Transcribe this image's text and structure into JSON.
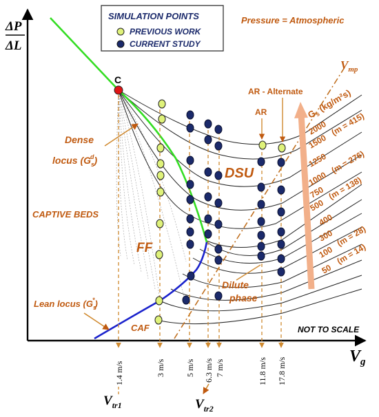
{
  "y_axis": {
    "numerator": "ΔP",
    "denominator": "ΔL"
  },
  "x_axis": {
    "label": "V",
    "sub": "g",
    "note": "NOT TO SCALE"
  },
  "pressure_note": "Pressure = Atmospheric",
  "legend": {
    "title": "SIMULATION POINTS",
    "previous": "PREVIOUS WORK",
    "current": "CURRENT STUDY",
    "previous_color": "#dff27a",
    "current_color": "#1b2a6b"
  },
  "regions": {
    "point_c": "C",
    "dense_locus_line1": "Dense",
    "dense_locus_line2": "locus (G",
    "dense_locus_sup": "d",
    "dense_locus_sub": "s",
    "dense_locus_close": ")",
    "captive_beds": "CAPTIVE BEDS",
    "ff": "FF",
    "dsu": "DSU",
    "caf": "CAF",
    "dilute": "Dilute",
    "phase": "phase",
    "lean_locus": "Lean locus (G",
    "lean_locus_sup": "*",
    "lean_locus_sub": "s",
    "lean_locus_close": ")",
    "ar": "AR",
    "ar_alternate": "AR - Alternate",
    "vmp": "V",
    "vmp_sub": "mp"
  },
  "gs_label": {
    "g": "G",
    "sub": "s",
    "unit": " (kg/m²s)"
  },
  "curve_labels": [
    {
      "text": "2000"
    },
    {
      "text": "1500"
    },
    {
      "text": "(m = 415)"
    },
    {
      "text": "1250"
    },
    {
      "text": "1000"
    },
    {
      "text": "(m = 276)"
    },
    {
      "text": "750"
    },
    {
      "text": "500"
    },
    {
      "text": "(m = 138)"
    },
    {
      "text": "400"
    },
    {
      "text": "300"
    },
    {
      "text": "100"
    },
    {
      "text": "(m = 28)"
    },
    {
      "text": "50"
    },
    {
      "text": "(m = 14)"
    }
  ],
  "velocity_labels": [
    {
      "text": "1.4 m/s"
    },
    {
      "text": "3 m/s"
    },
    {
      "text": "5 m/s"
    },
    {
      "text": "6.3 m/s"
    },
    {
      "text": "7 m/s"
    },
    {
      "text": "11.8 m/s"
    },
    {
      "text": "17.8 m/s"
    }
  ],
  "vtr1": {
    "v": "V",
    "sub": "tr1"
  },
  "vtr2": {
    "v": "V",
    "sub": "tr2"
  },
  "colors": {
    "dense_locus": "#33dd22",
    "lean_locus": "#1a22cc",
    "annotation": "#c05a10",
    "dashed": "#d08a30",
    "arrow_big": "#f2b08a",
    "point_c": "#e01515"
  }
}
